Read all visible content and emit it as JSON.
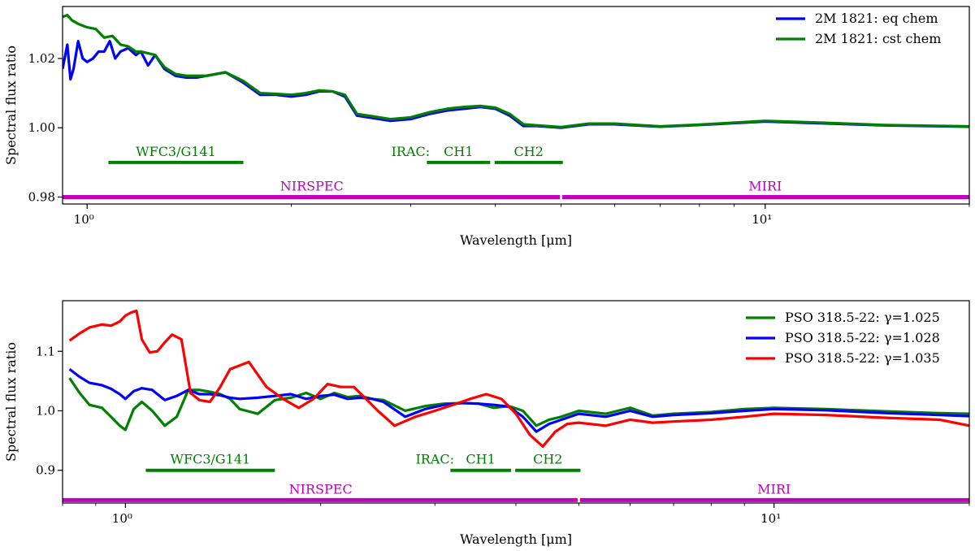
{
  "chart_data": [
    {
      "type": "line",
      "xlabel": "Wavelength [μm]",
      "ylabel": "Spectral flux ratio",
      "xscale": "log",
      "xlim": [
        0.92,
        20.0
      ],
      "ylim": [
        0.978,
        1.035
      ],
      "xticks": [
        {
          "value": 1,
          "label": "10⁰"
        },
        {
          "value": 10,
          "label": "10¹"
        }
      ],
      "yticks": [
        {
          "value": 0.98,
          "label": "0.98"
        },
        {
          "value": 1.0,
          "label": "1.00"
        },
        {
          "value": 1.02,
          "label": "1.02"
        }
      ],
      "legend_position": "top-right",
      "series": [
        {
          "name": "2M 1821: eq chem",
          "color": "#0000ff",
          "x": [
            0.92,
            0.935,
            0.945,
            0.955,
            0.97,
            0.985,
            1.0,
            1.02,
            1.04,
            1.06,
            1.08,
            1.1,
            1.12,
            1.15,
            1.18,
            1.2,
            1.23,
            1.26,
            1.3,
            1.35,
            1.4,
            1.45,
            1.5,
            1.6,
            1.7,
            1.8,
            1.9,
            2.0,
            2.1,
            2.2,
            2.3,
            2.4,
            2.5,
            2.6,
            2.8,
            3.0,
            3.2,
            3.4,
            3.6,
            3.8,
            4.0,
            4.2,
            4.4,
            4.6,
            5.0,
            5.5,
            6.0,
            7.0,
            8.0,
            10.0,
            12.0,
            15.0,
            20.0
          ],
          "y": [
            1.017,
            1.024,
            1.014,
            1.017,
            1.025,
            1.02,
            1.019,
            1.02,
            1.022,
            1.022,
            1.025,
            1.02,
            1.022,
            1.023,
            1.021,
            1.022,
            1.018,
            1.021,
            1.017,
            1.015,
            1.0145,
            1.0145,
            1.015,
            1.016,
            1.013,
            1.0095,
            1.0095,
            1.009,
            1.0095,
            1.0105,
            1.0105,
            1.009,
            1.0035,
            1.003,
            1.002,
            1.0025,
            1.004,
            1.005,
            1.0055,
            1.006,
            1.0055,
            1.0035,
            1.0005,
            1.0005,
            1.0,
            1.001,
            1.001,
            1.0003,
            1.0008,
            1.0018,
            1.0013,
            1.0007,
            1.0003
          ]
        },
        {
          "name": "2M 1821: cst chem",
          "color": "#008000",
          "x": [
            0.92,
            0.935,
            0.95,
            0.97,
            1.0,
            1.03,
            1.06,
            1.09,
            1.12,
            1.15,
            1.18,
            1.2,
            1.23,
            1.26,
            1.3,
            1.35,
            1.4,
            1.45,
            1.5,
            1.6,
            1.7,
            1.8,
            1.9,
            2.0,
            2.1,
            2.2,
            2.3,
            2.4,
            2.5,
            2.6,
            2.8,
            3.0,
            3.2,
            3.4,
            3.6,
            3.8,
            4.0,
            4.2,
            4.4,
            4.6,
            5.0,
            5.5,
            6.0,
            7.0,
            8.0,
            10.0,
            12.0,
            15.0,
            20.0
          ],
          "y": [
            1.032,
            1.0325,
            1.031,
            1.03,
            1.029,
            1.0285,
            1.026,
            1.0265,
            1.024,
            1.0235,
            1.022,
            1.022,
            1.0215,
            1.021,
            1.0175,
            1.0155,
            1.015,
            1.015,
            1.015,
            1.016,
            1.0135,
            1.01,
            1.0098,
            1.0095,
            1.01,
            1.0108,
            1.0105,
            1.0095,
            1.004,
            1.0035,
            1.0025,
            1.003,
            1.0045,
            1.0055,
            1.006,
            1.0063,
            1.0058,
            1.004,
            1.001,
            1.0007,
            1.0002,
            1.0012,
            1.0012,
            1.0004,
            1.0009,
            1.002,
            1.0015,
            1.0008,
            1.0004
          ]
        }
      ],
      "annotations": {
        "wfc3": {
          "label": "WFC3/G141",
          "x_range": [
            1.075,
            1.7
          ],
          "y": 0.99,
          "color": "#008000"
        },
        "irac_label": {
          "label": "IRAC:",
          "x": 3.0,
          "y": 0.99
        },
        "ch1": {
          "label": "CH1",
          "x_range": [
            3.17,
            3.93
          ],
          "y": 0.99,
          "color": "#008000"
        },
        "ch2": {
          "label": "CH2",
          "x_range": [
            3.99,
            5.03
          ],
          "y": 0.99,
          "color": "#008000"
        },
        "nirspec": {
          "label": "NIRSPEC",
          "x_range": [
            0.6,
            5.0
          ],
          "y": 0.98,
          "color": "#bf00bf"
        },
        "miri": {
          "label": "MIRI",
          "x_range": [
            5.0,
            28.0
          ],
          "y": 0.98,
          "color": "#bf00bf"
        }
      }
    },
    {
      "type": "line",
      "xlabel": "Wavelength [μm]",
      "ylabel": "Spectral flux ratio",
      "xscale": "log",
      "xlim": [
        0.8,
        20.0
      ],
      "ylim": [
        0.845,
        1.185
      ],
      "xticks": [
        {
          "value": 1,
          "label": "10⁰"
        },
        {
          "value": 10,
          "label": "10¹"
        }
      ],
      "yticks": [
        {
          "value": 0.9,
          "label": "0.9"
        },
        {
          "value": 1.0,
          "label": "1.0"
        },
        {
          "value": 1.1,
          "label": "1.1"
        }
      ],
      "legend_position": "top-right",
      "series": [
        {
          "name": "PSO 318.5-22: γ=1.025",
          "color": "#008000",
          "x": [
            0.82,
            0.85,
            0.88,
            0.92,
            0.95,
            0.98,
            1.0,
            1.03,
            1.06,
            1.1,
            1.15,
            1.2,
            1.25,
            1.3,
            1.35,
            1.4,
            1.45,
            1.5,
            1.6,
            1.7,
            1.8,
            1.9,
            2.0,
            2.1,
            2.2,
            2.3,
            2.4,
            2.5,
            2.7,
            2.9,
            3.1,
            3.3,
            3.5,
            3.7,
            3.9,
            4.1,
            4.3,
            4.5,
            4.7,
            5.0,
            5.5,
            6.0,
            6.5,
            7.0,
            8.0,
            9.0,
            10.0,
            12.0,
            15.0,
            18.0,
            20.0
          ],
          "y": [
            1.055,
            1.03,
            1.01,
            1.005,
            0.99,
            0.975,
            0.968,
            1.003,
            1.015,
            1.0,
            0.975,
            0.99,
            1.035,
            1.035,
            1.032,
            1.028,
            1.02,
            1.003,
            0.995,
            1.018,
            1.022,
            1.03,
            1.02,
            1.03,
            1.023,
            1.025,
            1.02,
            1.018,
            1.0,
            1.008,
            1.012,
            1.013,
            1.012,
            1.005,
            1.008,
            1.0,
            0.975,
            0.985,
            0.99,
            1.0,
            0.995,
            1.005,
            0.992,
            0.995,
            0.998,
            1.003,
            1.005,
            1.003,
            0.999,
            0.996,
            0.995
          ]
        },
        {
          "name": "PSO 318.5-22: γ=1.028",
          "color": "#0000ff",
          "x": [
            0.82,
            0.85,
            0.88,
            0.92,
            0.95,
            0.98,
            1.0,
            1.03,
            1.06,
            1.1,
            1.15,
            1.2,
            1.25,
            1.3,
            1.35,
            1.4,
            1.45,
            1.5,
            1.6,
            1.7,
            1.8,
            1.9,
            2.0,
            2.1,
            2.2,
            2.3,
            2.4,
            2.5,
            2.7,
            2.9,
            3.1,
            3.3,
            3.5,
            3.7,
            3.9,
            4.1,
            4.3,
            4.5,
            4.7,
            5.0,
            5.5,
            6.0,
            6.5,
            7.0,
            8.0,
            9.0,
            10.0,
            12.0,
            15.0,
            18.0,
            20.0
          ],
          "y": [
            1.07,
            1.057,
            1.047,
            1.043,
            1.037,
            1.028,
            1.02,
            1.033,
            1.038,
            1.035,
            1.018,
            1.025,
            1.035,
            1.028,
            1.028,
            1.026,
            1.022,
            1.02,
            1.022,
            1.025,
            1.028,
            1.02,
            1.025,
            1.027,
            1.02,
            1.022,
            1.02,
            1.015,
            0.99,
            1.003,
            1.01,
            1.013,
            1.012,
            1.01,
            1.007,
            0.99,
            0.965,
            0.978,
            0.985,
            0.995,
            0.99,
            1.0,
            0.99,
            0.993,
            0.996,
            1.0,
            1.003,
            1.001,
            0.996,
            0.993,
            0.991
          ]
        },
        {
          "name": "PSO 318.5-22: γ=1.035",
          "color": "#ff0000",
          "x": [
            0.82,
            0.85,
            0.88,
            0.92,
            0.95,
            0.98,
            1.0,
            1.02,
            1.04,
            1.06,
            1.09,
            1.12,
            1.15,
            1.18,
            1.22,
            1.26,
            1.3,
            1.35,
            1.4,
            1.45,
            1.55,
            1.65,
            1.75,
            1.85,
            1.95,
            2.05,
            2.15,
            2.25,
            2.35,
            2.45,
            2.6,
            2.8,
            3.0,
            3.2,
            3.4,
            3.6,
            3.8,
            4.0,
            4.2,
            4.4,
            4.6,
            4.8,
            5.0,
            5.5,
            6.0,
            6.5,
            7.0,
            8.0,
            9.0,
            10.0,
            12.0,
            15.0,
            18.0,
            20.0
          ],
          "y": [
            1.118,
            1.13,
            1.14,
            1.145,
            1.143,
            1.15,
            1.16,
            1.165,
            1.168,
            1.12,
            1.098,
            1.1,
            1.115,
            1.128,
            1.12,
            1.03,
            1.018,
            1.015,
            1.04,
            1.07,
            1.082,
            1.04,
            1.02,
            1.005,
            1.02,
            1.045,
            1.04,
            1.04,
            1.02,
            1.0,
            0.975,
            0.99,
            1.0,
            1.01,
            1.02,
            1.028,
            1.02,
            0.995,
            0.96,
            0.94,
            0.965,
            0.978,
            0.98,
            0.975,
            0.985,
            0.98,
            0.982,
            0.985,
            0.99,
            0.995,
            0.993,
            0.988,
            0.985,
            0.975
          ]
        }
      ],
      "annotations": {
        "wfc3": {
          "label": "WFC3/G141",
          "x_range": [
            1.075,
            1.7
          ],
          "y": 0.9,
          "color": "#008000"
        },
        "irac_label": {
          "label": "IRAC:",
          "x": 3.0,
          "y": 0.9
        },
        "ch1": {
          "label": "CH1",
          "x_range": [
            3.17,
            3.93
          ],
          "y": 0.9,
          "color": "#008000"
        },
        "ch2": {
          "label": "CH2",
          "x_range": [
            3.99,
            5.03
          ],
          "y": 0.9,
          "color": "#008000"
        },
        "nirspec": {
          "label": "NIRSPEC",
          "x_range": [
            0.6,
            5.0
          ],
          "y": 0.85,
          "color": "#bf00bf"
        },
        "miri": {
          "label": "MIRI",
          "x_range": [
            5.0,
            28.0
          ],
          "y": 0.85,
          "color": "#bf00bf"
        }
      }
    }
  ]
}
